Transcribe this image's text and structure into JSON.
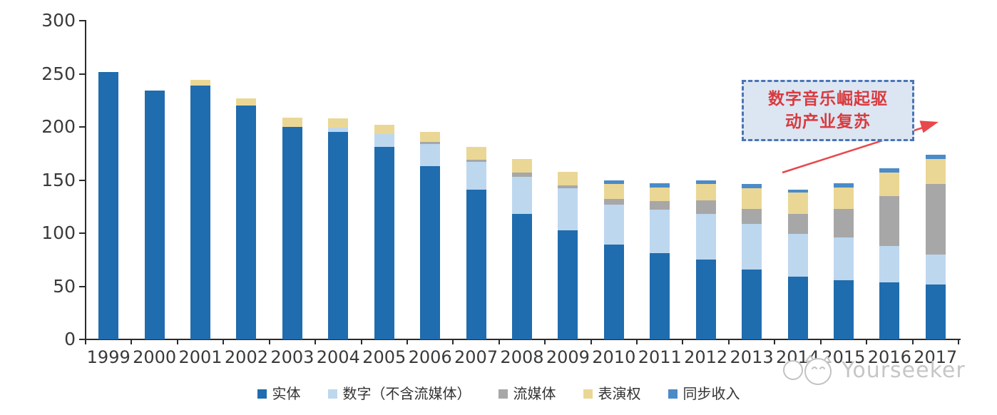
{
  "chart_data": {
    "type": "bar",
    "stacked": true,
    "title": "",
    "xlabel": "",
    "ylabel": "",
    "ylim": [
      0,
      300
    ],
    "y_ticks": [
      0,
      50,
      100,
      150,
      200,
      250,
      300
    ],
    "grid": false,
    "legend_position": "bottom",
    "axis_color": "#2b2b2b",
    "tick_label_color": "#3a3a3a",
    "categories": [
      "1999",
      "2000",
      "2001",
      "2002",
      "2003",
      "2004",
      "2005",
      "2006",
      "2007",
      "2008",
      "2009",
      "2010",
      "2011",
      "2012",
      "2013",
      "2014",
      "2015",
      "2016",
      "2017"
    ],
    "series": [
      {
        "name": "实体",
        "color": "#1f6cae",
        "values": [
          252,
          234,
          239,
          220,
          200,
          195,
          181,
          163,
          141,
          118,
          103,
          89,
          81,
          75,
          66,
          59,
          56,
          54,
          52
        ]
      },
      {
        "name": "数字（不含流媒体）",
        "color": "#bdd7ee",
        "values": [
          0,
          0,
          0,
          0,
          0,
          4,
          12,
          21,
          26,
          35,
          39,
          38,
          41,
          43,
          43,
          40,
          40,
          34,
          28
        ]
      },
      {
        "name": "流媒体",
        "color": "#a7a7a7",
        "values": [
          0,
          0,
          0,
          0,
          0,
          0,
          0,
          2,
          2,
          4,
          3,
          5,
          8,
          13,
          14,
          19,
          27,
          47,
          66
        ]
      },
      {
        "name": "表演权",
        "color": "#ebd795",
        "values": [
          0,
          0,
          5,
          7,
          9,
          9,
          9,
          9,
          12,
          13,
          13,
          14,
          13,
          15,
          19,
          20,
          20,
          22,
          24
        ]
      },
      {
        "name": "同步收入",
        "color": "#4b8bc8",
        "values": [
          0,
          0,
          0,
          0,
          0,
          0,
          0,
          0,
          0,
          0,
          0,
          4,
          4,
          4,
          4,
          3,
          4,
          4,
          4
        ]
      }
    ]
  },
  "annotation": {
    "line1": "数字音乐崛起驱",
    "line2": "动产业复苏",
    "text_color": "#d93a3e",
    "box_fill": "#dce6f3",
    "box_border_color": "#4a74b5",
    "arrow_color": "#e8474b"
  },
  "watermark": {
    "brand": "Yourseeker",
    "color": "#c6c6c6"
  }
}
